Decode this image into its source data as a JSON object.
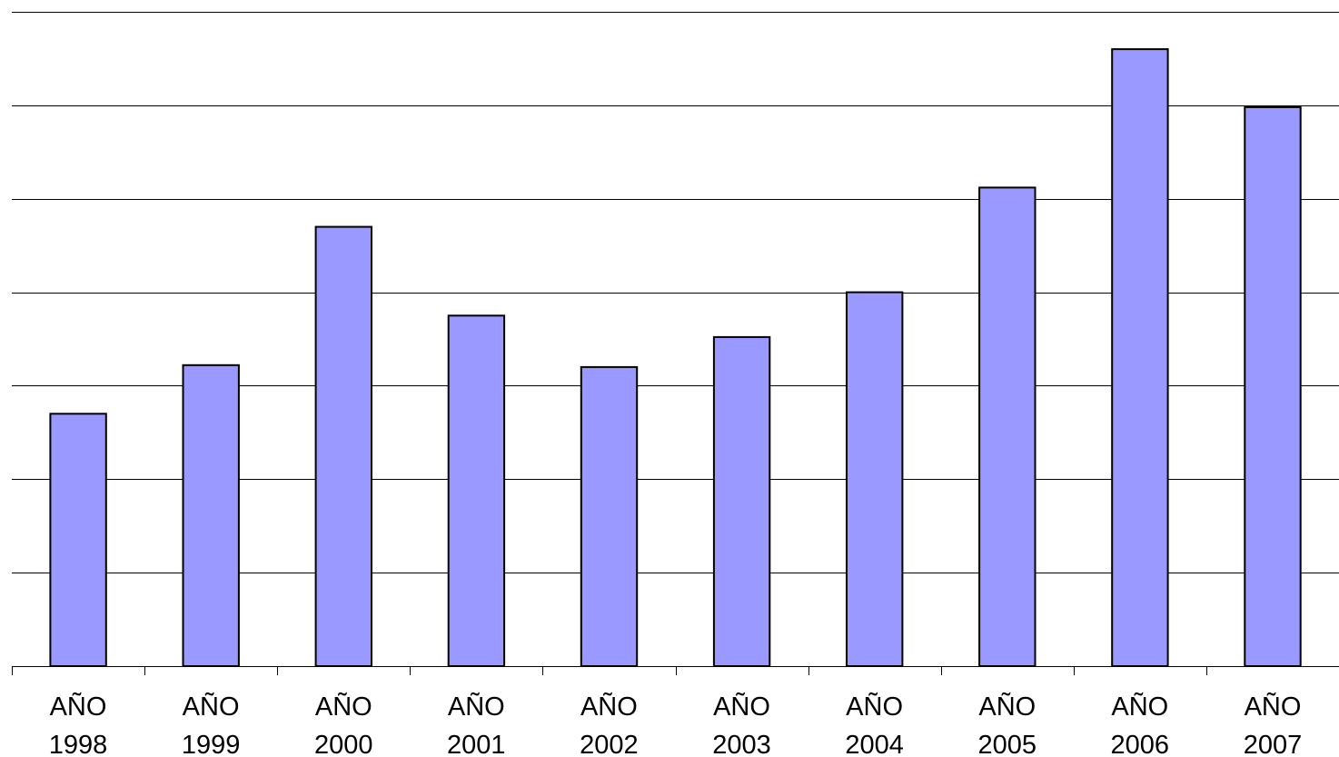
{
  "chart_data": {
    "type": "bar",
    "title": "",
    "xlabel": "",
    "ylabel": "",
    "categories": [
      "AÑO 1998",
      "AÑO 1999",
      "AÑO 2000",
      "AÑO 2001",
      "AÑO 2002",
      "AÑO 2003",
      "AÑO 2004",
      "AÑO 2005",
      "AÑO 2006",
      "AÑO 2007"
    ],
    "category_lines": [
      [
        "AÑO",
        "1998"
      ],
      [
        "AÑO",
        "1999"
      ],
      [
        "AÑO",
        "2000"
      ],
      [
        "AÑO",
        "2001"
      ],
      [
        "AÑO",
        "2002"
      ],
      [
        "AÑO",
        "2003"
      ],
      [
        "AÑO",
        "2004"
      ],
      [
        "AÑO",
        "2005"
      ],
      [
        "AÑO",
        "2006"
      ],
      [
        "AÑO",
        "2007"
      ]
    ],
    "values": [
      2.7,
      3.22,
      4.7,
      3.75,
      3.2,
      3.52,
      4.0,
      5.12,
      6.6,
      5.98
    ],
    "ylim": [
      0,
      7
    ],
    "y_gridlines": [
      1,
      2,
      3,
      4,
      5,
      6,
      7
    ],
    "y_tick_labels_shown": false,
    "grid": true,
    "legend": "none",
    "colors": {
      "bar_fill": "#9999ff",
      "bar_stroke": "#000000",
      "grid": "#000000",
      "text": "#000000",
      "background": "#ffffff"
    }
  }
}
